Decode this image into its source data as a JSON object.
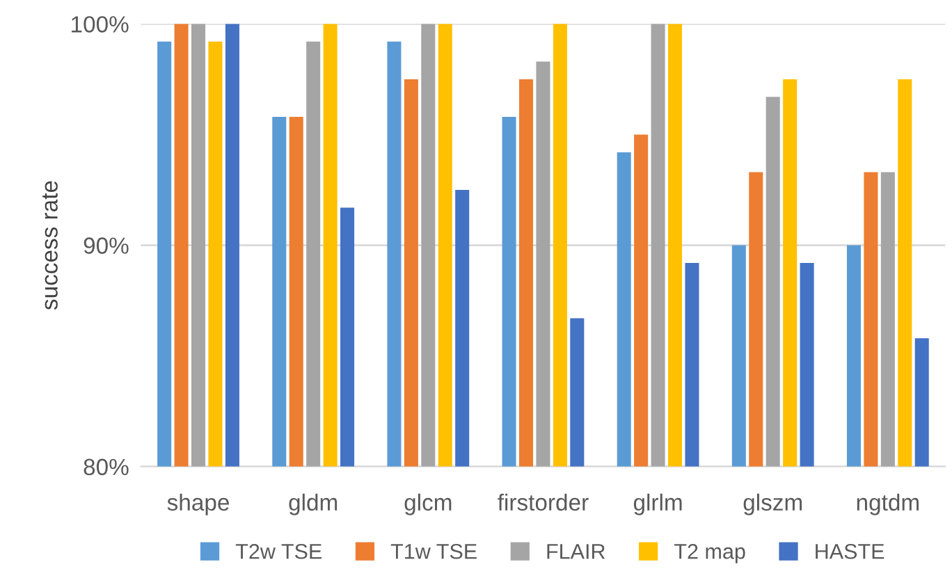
{
  "chart_data": {
    "type": "bar",
    "ylabel": "success rate",
    "categories": [
      "shape",
      "gldm",
      "glcm",
      "firstorder",
      "glrlm",
      "glszm",
      "ngtdm"
    ],
    "series": [
      {
        "name": "T2w TSE",
        "color": "#5b9bd5",
        "values": [
          99.2,
          95.8,
          99.2,
          95.8,
          94.2,
          90,
          90
        ]
      },
      {
        "name": "T1w TSE",
        "color": "#ed7d31",
        "values": [
          100,
          95.8,
          97.5,
          97.5,
          95,
          93.3,
          93.3
        ]
      },
      {
        "name": "FLAIR",
        "color": "#a5a5a5",
        "values": [
          100,
          99.2,
          100,
          98.3,
          100,
          96.7,
          93.3
        ]
      },
      {
        "name": "T2 map",
        "color": "#ffc000",
        "values": [
          99.2,
          100,
          100,
          100,
          100,
          97.5,
          97.5
        ]
      },
      {
        "name": "HASTE",
        "color": "#4472c4",
        "values": [
          100,
          91.7,
          92.5,
          86.7,
          89.2,
          89.2,
          85.8
        ]
      }
    ],
    "ylim": [
      80,
      100
    ],
    "yticks": [
      {
        "value": 80,
        "label": "80%"
      },
      {
        "value": 90,
        "label": "90%"
      },
      {
        "value": 100,
        "label": "100%"
      }
    ],
    "grid": "y",
    "legend": "bottom"
  }
}
